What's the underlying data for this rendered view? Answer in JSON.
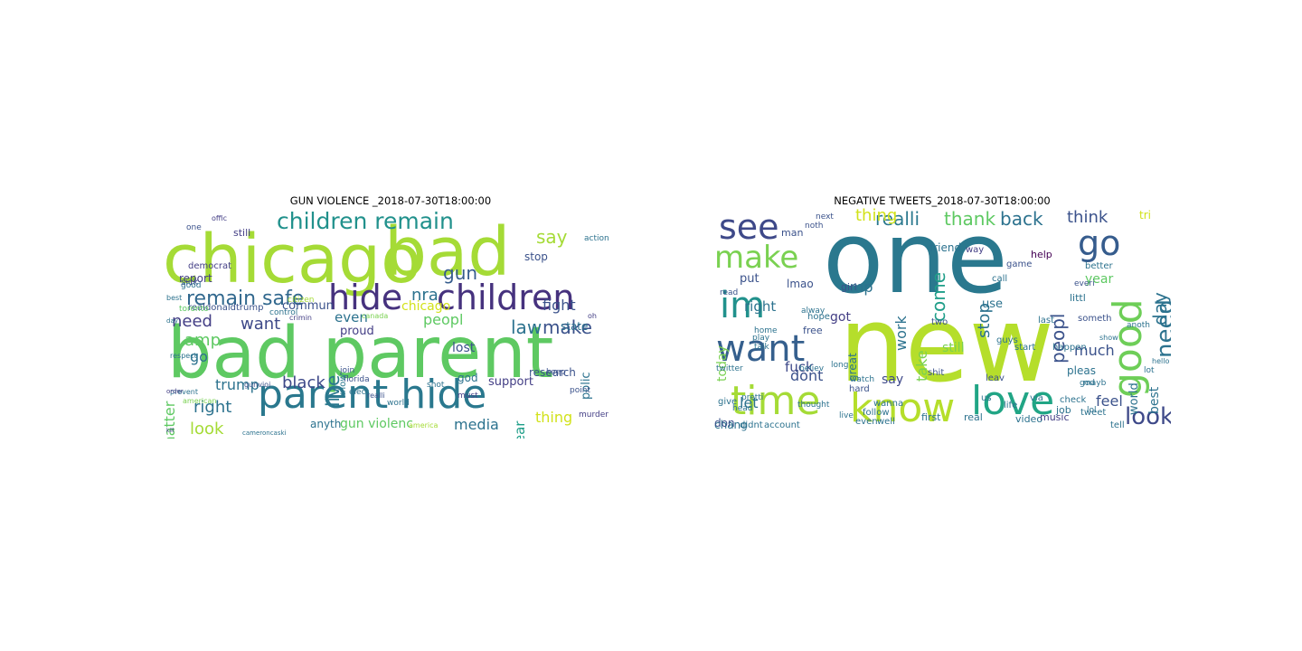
{
  "figure": {
    "panels": [
      {
        "title": "GUN VIOLENCE _2018-07-30T18:00:00",
        "words": [
          {
            "text": "chicago",
            "color": "#a5db36"
          },
          {
            "text": "bad",
            "color": "#a5db36"
          },
          {
            "text": "bad parent",
            "color": "#5ec962"
          },
          {
            "text": "parent hide",
            "color": "#2a788e"
          },
          {
            "text": "hide",
            "color": "#46327e"
          },
          {
            "text": "children",
            "color": "#46327e"
          },
          {
            "text": "children remain",
            "color": "#21918c"
          },
          {
            "text": "remain safe",
            "color": "#31688e"
          },
          {
            "text": "nra",
            "color": "#2c728e"
          },
          {
            "text": "gun",
            "color": "#365c8d"
          },
          {
            "text": "fight",
            "color": "#3b528b"
          },
          {
            "text": "law",
            "color": "#2c728e"
          },
          {
            "text": "make",
            "color": "#3b528b"
          },
          {
            "text": "matter",
            "color": "#5ec962"
          },
          {
            "text": "live",
            "color": "#2a788e"
          },
          {
            "text": "black",
            "color": "#3e4989"
          },
          {
            "text": "right",
            "color": "#2c728e"
          },
          {
            "text": "look",
            "color": "#a5db36"
          },
          {
            "text": "trump",
            "color": "#2c728e"
          },
          {
            "text": "media",
            "color": "#2c728e"
          },
          {
            "text": "thing",
            "color": "#d2e21b"
          },
          {
            "text": "year",
            "color": "#1f9e89"
          },
          {
            "text": "peopl",
            "color": "#5ec962"
          },
          {
            "text": "even",
            "color": "#2c728e"
          },
          {
            "text": "want",
            "color": "#3e4989"
          },
          {
            "text": "need",
            "color": "#433e85"
          },
          {
            "text": "amp",
            "color": "#5ec962"
          },
          {
            "text": "go",
            "color": "#2c728e"
          },
          {
            "text": "say",
            "color": "#a5db36"
          },
          {
            "text": "stop",
            "color": "#3b528b"
          },
          {
            "text": "lost",
            "color": "#3b528b"
          },
          {
            "text": "commun",
            "color": "#3b528b"
          },
          {
            "text": "report",
            "color": "#433e85"
          },
          {
            "text": "proud",
            "color": "#433e85"
          },
          {
            "text": "state",
            "color": "#2c728e"
          },
          {
            "text": "support",
            "color": "#433e85"
          },
          {
            "text": "research",
            "color": "#3b528b"
          },
          {
            "text": "polic",
            "color": "#2c728e"
          },
          {
            "text": "god",
            "color": "#2c728e"
          },
          {
            "text": "gun violenc",
            "color": "#5ec962"
          },
          {
            "text": "anyth",
            "color": "#2c728e"
          },
          {
            "text": "chicago",
            "color": "#d2e21b"
          },
          {
            "text": "still",
            "color": "#433e85"
          },
          {
            "text": "one",
            "color": "#3b528b"
          },
          {
            "text": "democrat",
            "color": "#433e85"
          },
          {
            "text": "realdonaldtrump",
            "color": "#3b528b"
          },
          {
            "text": "toronto",
            "color": "#5ec962"
          },
          {
            "text": "control",
            "color": "#2c728e"
          },
          {
            "text": "citizen",
            "color": "#a5db36"
          },
          {
            "text": "canada",
            "color": "#7ad151"
          },
          {
            "text": "respect",
            "color": "#2c728e"
          },
          {
            "text": "prevent",
            "color": "#2c728e"
          },
          {
            "text": "florida",
            "color": "#3b528b"
          },
          {
            "text": "elect",
            "color": "#2c728e"
          },
          {
            "text": "world",
            "color": "#2c728e"
          },
          {
            "text": "keep",
            "color": "#3b528b"
          },
          {
            "text": "point",
            "color": "#3b528b"
          },
          {
            "text": "murder",
            "color": "#433e85"
          },
          {
            "text": "shot",
            "color": "#2c728e"
          },
          {
            "text": "join",
            "color": "#3b528b"
          },
          {
            "text": "gunvioi",
            "color": "#3b528b"
          },
          {
            "text": "american",
            "color": "#7ad151"
          },
          {
            "text": "cameroncaski",
            "color": "#2c728e"
          },
          {
            "text": "america",
            "color": "#a5db36"
          },
          {
            "text": "order",
            "color": "#433e85"
          },
          {
            "text": "sick",
            "color": "#3b528b"
          },
          {
            "text": "good",
            "color": "#2c728e"
          },
          {
            "text": "day",
            "color": "#2c728e"
          },
          {
            "text": "know",
            "color": "#2a788e"
          },
          {
            "text": "crimin",
            "color": "#433e85"
          },
          {
            "text": "oh",
            "color": "#433e85"
          },
          {
            "text": "action",
            "color": "#2c728e"
          },
          {
            "text": "offic",
            "color": "#433e85"
          },
          {
            "text": "best",
            "color": "#2c728e"
          },
          {
            "text": "must",
            "color": "#433e85"
          },
          {
            "text": "realli",
            "color": "#3b528b"
          },
          {
            "text": "kill",
            "color": "#433e85"
          },
          {
            "text": "today",
            "color": "#2c728e"
          }
        ]
      },
      {
        "title": "NEGATIVE TWEETS_2018-07-30T18:00:00",
        "words": [
          {
            "text": "one",
            "color": "#2a788e"
          },
          {
            "text": "new",
            "color": "#b5de2b"
          },
          {
            "text": "see",
            "color": "#3e4989"
          },
          {
            "text": "go",
            "color": "#365c8d"
          },
          {
            "text": "make",
            "color": "#7ad151"
          },
          {
            "text": "im",
            "color": "#21918c"
          },
          {
            "text": "want",
            "color": "#355f8d"
          },
          {
            "text": "good",
            "color": "#6ece58"
          },
          {
            "text": "time",
            "color": "#a5db36"
          },
          {
            "text": "know",
            "color": "#b5de2b"
          },
          {
            "text": "love",
            "color": "#21a585"
          },
          {
            "text": "look",
            "color": "#3e4989"
          },
          {
            "text": "need",
            "color": "#2c728e"
          },
          {
            "text": "day",
            "color": "#2c728e"
          },
          {
            "text": "realli",
            "color": "#2a788e"
          },
          {
            "text": "thank",
            "color": "#5ec962"
          },
          {
            "text": "back",
            "color": "#2c728e"
          },
          {
            "text": "think",
            "color": "#3b528b"
          },
          {
            "text": "peopl",
            "color": "#3b528b"
          },
          {
            "text": "year",
            "color": "#5ec962"
          },
          {
            "text": "amp",
            "color": "#2c728e"
          },
          {
            "text": "right",
            "color": "#2c728e"
          },
          {
            "text": "got",
            "color": "#433e85"
          },
          {
            "text": "come",
            "color": "#1f9e89"
          },
          {
            "text": "stop",
            "color": "#2c728e"
          },
          {
            "text": "use",
            "color": "#2c728e"
          },
          {
            "text": "much",
            "color": "#3b528b"
          },
          {
            "text": "still",
            "color": "#7ad151"
          },
          {
            "text": "work",
            "color": "#2c728e"
          },
          {
            "text": "take",
            "color": "#7ad151"
          },
          {
            "text": "say",
            "color": "#3e4989"
          },
          {
            "text": "dont",
            "color": "#3b528b"
          },
          {
            "text": "fuck",
            "color": "#3e4989"
          },
          {
            "text": "let",
            "color": "#2c728e"
          },
          {
            "text": "feel",
            "color": "#3b528b"
          },
          {
            "text": "best",
            "color": "#2c728e"
          },
          {
            "text": "world",
            "color": "#2c728e"
          },
          {
            "text": "today",
            "color": "#7ad151"
          },
          {
            "text": "thing",
            "color": "#d2e21b"
          },
          {
            "text": "man",
            "color": "#3b528b"
          },
          {
            "text": "lmao",
            "color": "#3b528b"
          },
          {
            "text": "friend",
            "color": "#2c728e"
          },
          {
            "text": "way",
            "color": "#433e85"
          },
          {
            "text": "help",
            "color": "#440154"
          },
          {
            "text": "put",
            "color": "#3b528b"
          },
          {
            "text": "hope",
            "color": "#2c728e"
          },
          {
            "text": "free",
            "color": "#3b528b"
          },
          {
            "text": "girl",
            "color": "#3b528b"
          },
          {
            "text": "pleas",
            "color": "#2c728e"
          },
          {
            "text": "littl",
            "color": "#2c728e"
          },
          {
            "text": "job",
            "color": "#2c728e"
          },
          {
            "text": "video",
            "color": "#2c728e"
          },
          {
            "text": "music",
            "color": "#433e85"
          },
          {
            "text": "first",
            "color": "#2c728e"
          },
          {
            "text": "real",
            "color": "#2c728e"
          },
          {
            "text": "life",
            "color": "#2c728e"
          },
          {
            "text": "even",
            "color": "#2c728e"
          },
          {
            "text": "well",
            "color": "#2c728e"
          },
          {
            "text": "wanna",
            "color": "#2c728e"
          },
          {
            "text": "hard",
            "color": "#3b528b"
          },
          {
            "text": "great",
            "color": "#2c728e"
          },
          {
            "text": "give",
            "color": "#2c728e"
          },
          {
            "text": "chang",
            "color": "#2c728e"
          },
          {
            "text": "don",
            "color": "#3b528b"
          },
          {
            "text": "didnt",
            "color": "#2c728e"
          },
          {
            "text": "account",
            "color": "#2c728e"
          },
          {
            "text": "follow",
            "color": "#2c728e"
          },
          {
            "text": "two",
            "color": "#3b528b"
          },
          {
            "text": "tweet",
            "color": "#2c728e"
          },
          {
            "text": "lol",
            "color": "#2c728e"
          },
          {
            "text": "via",
            "color": "#2c728e"
          },
          {
            "text": "us",
            "color": "#2c728e"
          },
          {
            "text": "leav",
            "color": "#3b528b"
          },
          {
            "text": "tell",
            "color": "#2c728e"
          },
          {
            "text": "last",
            "color": "#2c728e"
          },
          {
            "text": "someth",
            "color": "#3b528b"
          },
          {
            "text": "everi",
            "color": "#3b528b"
          },
          {
            "text": "head",
            "color": "#2c728e"
          },
          {
            "text": "twitter",
            "color": "#2c728e"
          },
          {
            "text": "read",
            "color": "#3b528b"
          },
          {
            "text": "better",
            "color": "#2c728e"
          },
          {
            "text": "game",
            "color": "#3b528b"
          },
          {
            "text": "call",
            "color": "#2c728e"
          },
          {
            "text": "check",
            "color": "#2c728e"
          },
          {
            "text": "mayb",
            "color": "#2c728e"
          },
          {
            "text": "long",
            "color": "#2c728e"
          },
          {
            "text": "watch",
            "color": "#2c728e"
          },
          {
            "text": "believ",
            "color": "#2c728e"
          },
          {
            "text": "thought",
            "color": "#2c728e"
          },
          {
            "text": "shit",
            "color": "#3b528b"
          },
          {
            "text": "start",
            "color": "#2c728e"
          },
          {
            "text": "next",
            "color": "#3b528b"
          },
          {
            "text": "noth",
            "color": "#3b528b"
          },
          {
            "text": "tri",
            "color": "#d2e21b"
          },
          {
            "text": "happen",
            "color": "#2c728e"
          },
          {
            "text": "lot",
            "color": "#2c728e"
          },
          {
            "text": "guys",
            "color": "#2c728e"
          },
          {
            "text": "live",
            "color": "#2c728e"
          },
          {
            "text": "alway",
            "color": "#2c728e"
          },
          {
            "text": "play",
            "color": "#2c728e"
          },
          {
            "text": "talk",
            "color": "#2c728e"
          },
          {
            "text": "home",
            "color": "#2c728e"
          },
          {
            "text": "god",
            "color": "#2c728e"
          },
          {
            "text": "pretti",
            "color": "#2c728e"
          },
          {
            "text": "anoth",
            "color": "#2c728e"
          },
          {
            "text": "hello",
            "color": "#2c728e"
          },
          {
            "text": "show",
            "color": "#2c728e"
          },
          {
            "text": "night",
            "color": "#2c728e"
          }
        ]
      }
    ]
  }
}
